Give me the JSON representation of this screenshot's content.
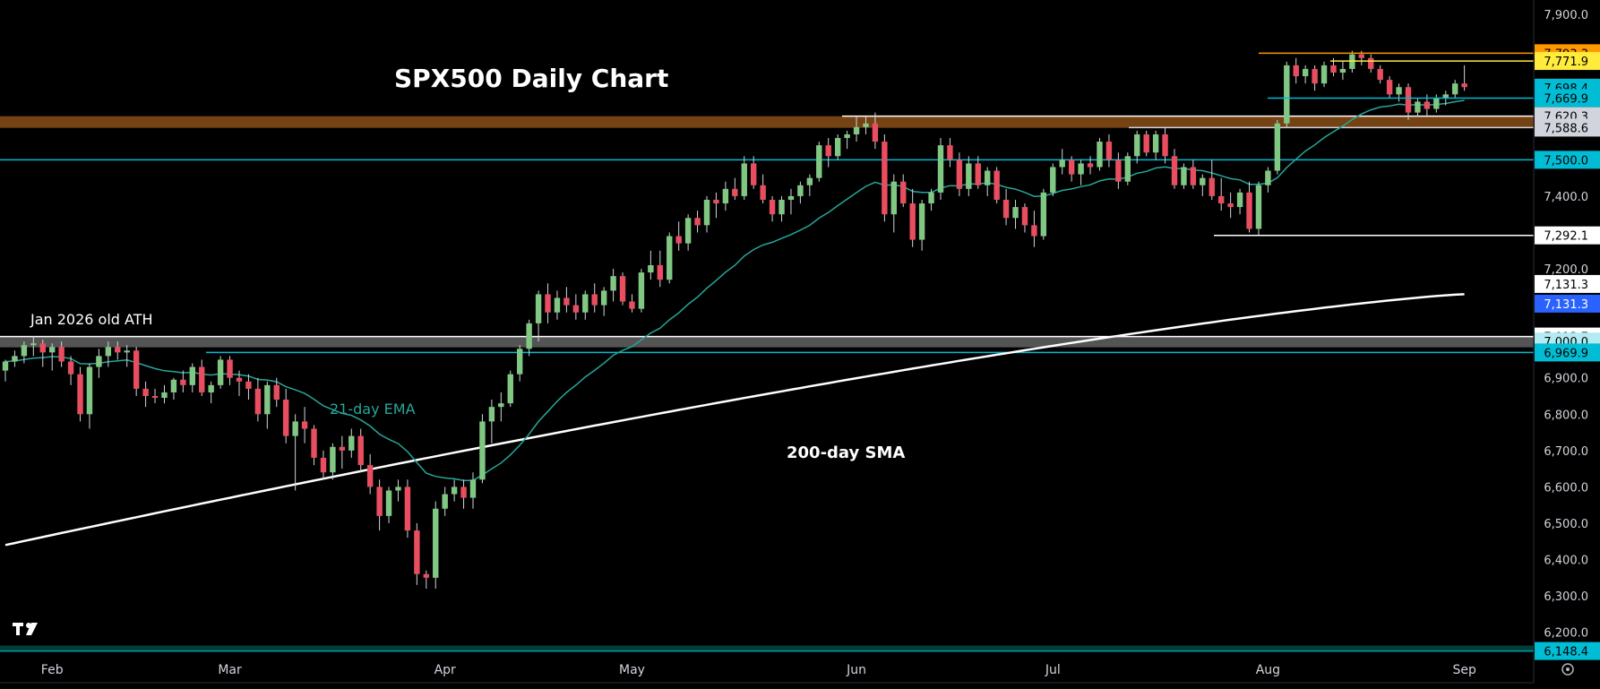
{
  "chart_data": {
    "type": "candlestick",
    "title": "SPX500 Daily Chart",
    "x_ticks": [
      "Feb",
      "Mar",
      "Apr",
      "May",
      "Jun",
      "Jul",
      "Aug",
      "Sep"
    ],
    "y_ticks": [
      "7,900.0",
      "7,800.0",
      "7,700.0",
      "7,600.0",
      "7,500.0",
      "7,400.0",
      "7,300.0",
      "7,200.0",
      "7,100.0",
      "7,000.0",
      "6,900.0",
      "6,800.0",
      "6,700.0",
      "6,600.0",
      "6,500.0",
      "6,400.0",
      "6,300.0",
      "6,200.0"
    ],
    "ylim": [
      6140,
      7920
    ],
    "price_tags": [
      {
        "label": "7,793.3",
        "value": 7793.3,
        "bg": "#ff9800",
        "fg": "#000000"
      },
      {
        "label": "7,771.9",
        "value": 7771.9,
        "bg": "#ffeb3b",
        "fg": "#000000"
      },
      {
        "label": "7,698.4",
        "value": 7698.4,
        "bg": "#00bcd4",
        "fg": "#000000"
      },
      {
        "label": "7,669.9",
        "value": 7669.9,
        "bg": "#00bcd4",
        "fg": "#000000"
      },
      {
        "label": "7,620.3",
        "value": 7620.3,
        "bg": "#d1d4dc",
        "fg": "#000000"
      },
      {
        "label": "7,588.6",
        "value": 7588.6,
        "bg": "#d1d4dc",
        "fg": "#000000"
      },
      {
        "label": "7,500.0",
        "value": 7500.0,
        "bg": "#00bcd4",
        "fg": "#000000"
      },
      {
        "label": "7,292.1",
        "value": 7292.1,
        "bg": "#ffffff",
        "fg": "#000000"
      },
      {
        "label": "7,131.3",
        "value": 7131.3,
        "bg": "#ffffff",
        "fg": "#000000",
        "y_offset": -0.5
      },
      {
        "label": "7,131.3",
        "value": 7131.3,
        "bg": "#2962ff",
        "fg": "#ffffff",
        "y_offset": 0.5
      },
      {
        "label": "7,013.7",
        "value": 7013.7,
        "bg": "#ffffff",
        "fg": "#000000"
      },
      {
        "label": "7,000.0",
        "value": 7000.0,
        "bg": "#b2ebf2",
        "fg": "#000000"
      },
      {
        "label": "6,969.9",
        "value": 6969.9,
        "bg": "#00bcd4",
        "fg": "#000000"
      },
      {
        "label": "6,148.4",
        "value": 6148.4,
        "bg": "#00bcd4",
        "fg": "#000000"
      }
    ],
    "annotations": {
      "old_ath": "Jan 2026 old ATH",
      "ema": "21-day EMA",
      "sma": "200-day SMA"
    },
    "candles": [
      [
        6920,
        6950,
        6890,
        6945
      ],
      [
        6945,
        6975,
        6930,
        6960
      ],
      [
        6960,
        7000,
        6940,
        6990
      ],
      [
        6990,
        7015,
        6960,
        6995
      ],
      [
        6995,
        7005,
        6930,
        6970
      ],
      [
        6970,
        6995,
        6920,
        6985
      ],
      [
        6985,
        7000,
        6930,
        6945
      ],
      [
        6945,
        6960,
        6880,
        6910
      ],
      [
        6910,
        6930,
        6780,
        6800
      ],
      [
        6800,
        6940,
        6760,
        6930
      ],
      [
        6930,
        6980,
        6900,
        6960
      ],
      [
        6960,
        7000,
        6930,
        6985
      ],
      [
        6985,
        7000,
        6950,
        6970
      ],
      [
        6970,
        6990,
        6930,
        6975
      ],
      [
        6975,
        6985,
        6850,
        6870
      ],
      [
        6870,
        6890,
        6820,
        6850
      ],
      [
        6850,
        6870,
        6830,
        6845
      ],
      [
        6845,
        6880,
        6830,
        6860
      ],
      [
        6860,
        6900,
        6840,
        6895
      ],
      [
        6895,
        6920,
        6860,
        6880
      ],
      [
        6880,
        6940,
        6860,
        6930
      ],
      [
        6930,
        6950,
        6850,
        6860
      ],
      [
        6860,
        6890,
        6830,
        6880
      ],
      [
        6880,
        6960,
        6870,
        6950
      ],
      [
        6950,
        6960,
        6880,
        6900
      ],
      [
        6900,
        6920,
        6850,
        6890
      ],
      [
        6890,
        6910,
        6840,
        6870
      ],
      [
        6870,
        6900,
        6780,
        6800
      ],
      [
        6800,
        6890,
        6760,
        6880
      ],
      [
        6880,
        6900,
        6820,
        6840
      ],
      [
        6840,
        6870,
        6720,
        6740
      ],
      [
        6740,
        6800,
        6590,
        6780
      ],
      [
        6780,
        6820,
        6720,
        6760
      ],
      [
        6760,
        6770,
        6660,
        6680
      ],
      [
        6680,
        6700,
        6620,
        6640
      ],
      [
        6640,
        6720,
        6620,
        6710
      ],
      [
        6710,
        6740,
        6650,
        6700
      ],
      [
        6700,
        6760,
        6680,
        6740
      ],
      [
        6740,
        6760,
        6640,
        6660
      ],
      [
        6660,
        6690,
        6580,
        6600
      ],
      [
        6600,
        6620,
        6480,
        6520
      ],
      [
        6520,
        6600,
        6500,
        6590
      ],
      [
        6590,
        6620,
        6560,
        6600
      ],
      [
        6600,
        6620,
        6460,
        6480
      ],
      [
        6480,
        6500,
        6330,
        6360
      ],
      [
        6360,
        6370,
        6320,
        6350
      ],
      [
        6350,
        6560,
        6320,
        6540
      ],
      [
        6540,
        6600,
        6520,
        6580
      ],
      [
        6580,
        6620,
        6560,
        6600
      ],
      [
        6600,
        6620,
        6540,
        6570
      ],
      [
        6570,
        6640,
        6540,
        6620
      ],
      [
        6620,
        6800,
        6610,
        6780
      ],
      [
        6780,
        6840,
        6720,
        6820
      ],
      [
        6820,
        6860,
        6780,
        6830
      ],
      [
        6830,
        6920,
        6820,
        6910
      ],
      [
        6910,
        6990,
        6890,
        6980
      ],
      [
        6980,
        7060,
        6960,
        7050
      ],
      [
        7050,
        7140,
        7000,
        7130
      ],
      [
        7130,
        7160,
        7050,
        7080
      ],
      [
        7080,
        7140,
        7060,
        7120
      ],
      [
        7120,
        7150,
        7080,
        7100
      ],
      [
        7100,
        7130,
        7060,
        7080
      ],
      [
        7080,
        7140,
        7060,
        7130
      ],
      [
        7130,
        7160,
        7080,
        7100
      ],
      [
        7100,
        7150,
        7070,
        7140
      ],
      [
        7140,
        7200,
        7110,
        7180
      ],
      [
        7180,
        7190,
        7100,
        7110
      ],
      [
        7110,
        7130,
        7080,
        7090
      ],
      [
        7090,
        7200,
        7080,
        7190
      ],
      [
        7190,
        7250,
        7170,
        7210
      ],
      [
        7210,
        7250,
        7150,
        7170
      ],
      [
        7170,
        7300,
        7160,
        7290
      ],
      [
        7290,
        7330,
        7250,
        7270
      ],
      [
        7270,
        7350,
        7250,
        7340
      ],
      [
        7340,
        7360,
        7300,
        7320
      ],
      [
        7320,
        7400,
        7300,
        7390
      ],
      [
        7390,
        7410,
        7340,
        7380
      ],
      [
        7380,
        7440,
        7360,
        7420
      ],
      [
        7420,
        7450,
        7390,
        7400
      ],
      [
        7400,
        7510,
        7390,
        7490
      ],
      [
        7490,
        7510,
        7420,
        7430
      ],
      [
        7430,
        7460,
        7380,
        7390
      ],
      [
        7390,
        7400,
        7330,
        7350
      ],
      [
        7350,
        7400,
        7330,
        7390
      ],
      [
        7390,
        7420,
        7350,
        7400
      ],
      [
        7400,
        7440,
        7380,
        7430
      ],
      [
        7430,
        7460,
        7400,
        7450
      ],
      [
        7450,
        7550,
        7440,
        7540
      ],
      [
        7540,
        7560,
        7480,
        7510
      ],
      [
        7510,
        7570,
        7500,
        7560
      ],
      [
        7560,
        7580,
        7530,
        7570
      ],
      [
        7570,
        7620,
        7550,
        7590
      ],
      [
        7590,
        7620,
        7570,
        7600
      ],
      [
        7600,
        7630,
        7530,
        7550
      ],
      [
        7550,
        7570,
        7330,
        7350
      ],
      [
        7350,
        7460,
        7300,
        7440
      ],
      [
        7440,
        7460,
        7370,
        7380
      ],
      [
        7380,
        7420,
        7260,
        7280
      ],
      [
        7280,
        7390,
        7250,
        7380
      ],
      [
        7380,
        7420,
        7360,
        7410
      ],
      [
        7410,
        7560,
        7390,
        7540
      ],
      [
        7540,
        7560,
        7480,
        7500
      ],
      [
        7500,
        7520,
        7400,
        7420
      ],
      [
        7420,
        7510,
        7400,
        7490
      ],
      [
        7490,
        7510,
        7420,
        7430
      ],
      [
        7430,
        7480,
        7400,
        7470
      ],
      [
        7470,
        7480,
        7380,
        7390
      ],
      [
        7390,
        7420,
        7320,
        7340
      ],
      [
        7340,
        7390,
        7310,
        7370
      ],
      [
        7370,
        7380,
        7300,
        7320
      ],
      [
        7320,
        7360,
        7260,
        7290
      ],
      [
        7290,
        7420,
        7280,
        7410
      ],
      [
        7410,
        7490,
        7400,
        7480
      ],
      [
        7480,
        7530,
        7460,
        7500
      ],
      [
        7500,
        7510,
        7440,
        7460
      ],
      [
        7460,
        7500,
        7430,
        7490
      ],
      [
        7490,
        7510,
        7460,
        7480
      ],
      [
        7480,
        7560,
        7470,
        7550
      ],
      [
        7550,
        7570,
        7480,
        7500
      ],
      [
        7500,
        7520,
        7420,
        7440
      ],
      [
        7440,
        7520,
        7430,
        7510
      ],
      [
        7510,
        7580,
        7490,
        7570
      ],
      [
        7570,
        7580,
        7510,
        7520
      ],
      [
        7520,
        7580,
        7500,
        7570
      ],
      [
        7570,
        7590,
        7490,
        7510
      ],
      [
        7510,
        7530,
        7420,
        7430
      ],
      [
        7430,
        7490,
        7420,
        7480
      ],
      [
        7480,
        7500,
        7420,
        7430
      ],
      [
        7430,
        7460,
        7400,
        7450
      ],
      [
        7450,
        7500,
        7390,
        7400
      ],
      [
        7400,
        7450,
        7360,
        7380
      ],
      [
        7380,
        7410,
        7340,
        7370
      ],
      [
        7370,
        7420,
        7350,
        7410
      ],
      [
        7410,
        7440,
        7300,
        7310
      ],
      [
        7310,
        7440,
        7290,
        7430
      ],
      [
        7430,
        7480,
        7410,
        7470
      ],
      [
        7470,
        7610,
        7460,
        7600
      ],
      [
        7600,
        7770,
        7590,
        7760
      ],
      [
        7760,
        7780,
        7710,
        7730
      ],
      [
        7730,
        7760,
        7710,
        7750
      ],
      [
        7750,
        7760,
        7690,
        7710
      ],
      [
        7710,
        7770,
        7700,
        7760
      ],
      [
        7760,
        7780,
        7730,
        7740
      ],
      [
        7740,
        7770,
        7720,
        7750
      ],
      [
        7750,
        7800,
        7740,
        7790
      ],
      [
        7790,
        7800,
        7760,
        7780
      ],
      [
        7780,
        7790,
        7740,
        7750
      ],
      [
        7750,
        7760,
        7710,
        7720
      ],
      [
        7720,
        7730,
        7670,
        7680
      ],
      [
        7680,
        7710,
        7660,
        7700
      ],
      [
        7700,
        7710,
        7610,
        7630
      ],
      [
        7630,
        7670,
        7620,
        7660
      ],
      [
        7660,
        7680,
        7620,
        7640
      ],
      [
        7640,
        7680,
        7630,
        7670
      ],
      [
        7670,
        7690,
        7650,
        7680
      ],
      [
        7680,
        7720,
        7670,
        7710
      ],
      [
        7710,
        7760,
        7690,
        7700
      ]
    ]
  }
}
